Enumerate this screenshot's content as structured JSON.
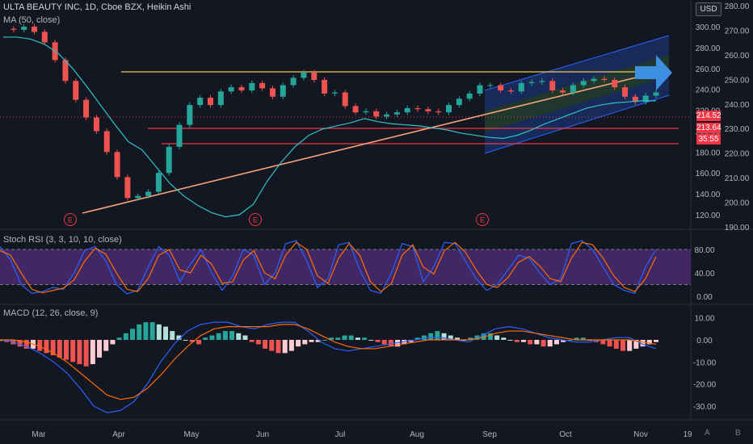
{
  "header": {
    "title": "ULTA BEAUTY INC, 1D, Cboe BZX, Heikin Ashi",
    "ma_label": "MA (50, close)",
    "currency": "USD"
  },
  "stoch_label": "Stoch RSI (3, 3, 10, 10, close)",
  "macd_label": "MACD (12, 26, close, 9)",
  "price_badges": {
    "last": "214.52",
    "level": "213.64",
    "timer": "35:55"
  },
  "bottom": {
    "auto": "A",
    "b": "B"
  },
  "earnings_marker": "E",
  "colors": {
    "background": "#131722",
    "up": "#26a69a",
    "down": "#ef5350",
    "ma": "#2dc2c6",
    "trend": "#f7a47c",
    "resistance": "#f2c94c",
    "support": "#f23645",
    "rsi_band": "#4a2a6e",
    "k_line": "#2962ff",
    "d_line": "#ff6d00",
    "arrow": "#3d8fe0"
  },
  "chart_data": [
    {
      "type": "candlestick",
      "title": "ULTA BEAUTY INC, 1D, Cboe BZX, Heikin Ashi",
      "y_axis_left_ticks": [
        300,
        280,
        260,
        240,
        220,
        200,
        180,
        160,
        140,
        120
      ],
      "y_axis_right_ticks": [
        280,
        270,
        260,
        250,
        240,
        230,
        220,
        210,
        200,
        190
      ],
      "x_ticks": [
        "Mar",
        "Apr",
        "May",
        "Jun",
        "Jul",
        "Aug",
        "Sep",
        "Oct",
        "Nov",
        "19"
      ],
      "close_path": [
        298,
        297,
        300,
        295,
        285,
        268,
        248,
        230,
        213,
        200,
        180,
        156,
        136,
        138,
        142,
        160,
        185,
        206,
        225,
        232,
        225,
        238,
        242,
        239,
        246,
        241,
        233,
        244,
        251,
        256,
        249,
        236,
        237,
        224,
        218,
        219,
        214,
        216,
        218,
        222,
        221,
        219,
        218,
        225,
        231,
        236,
        244,
        244,
        239,
        238,
        246,
        247,
        248,
        239,
        237,
        244,
        248,
        250,
        249,
        242,
        233,
        228,
        234,
        237
      ],
      "ma50": [
        290,
        290,
        288,
        283,
        274,
        260,
        243,
        225,
        207,
        190,
        182,
        166,
        150,
        138,
        129,
        122,
        118,
        120,
        130,
        152,
        170,
        185,
        196,
        202,
        205,
        208,
        212,
        209,
        207,
        206,
        205,
        203,
        201,
        198,
        196,
        194,
        193,
        196,
        201,
        207,
        212,
        217,
        222,
        225,
        227,
        228,
        229,
        229
      ],
      "annotations": [
        "E",
        "E",
        "E"
      ]
    },
    {
      "type": "line",
      "title": "Stoch RSI (3, 3, 10, 10, close)",
      "y_ticks": [
        80.0,
        40.0,
        0.0
      ],
      "band": [
        20,
        80
      ],
      "k": [
        85,
        62,
        20,
        5,
        8,
        15,
        12,
        40,
        78,
        85,
        60,
        20,
        4,
        10,
        50,
        85,
        70,
        25,
        55,
        80,
        40,
        10,
        35,
        80,
        70,
        20,
        40,
        90,
        95,
        60,
        15,
        30,
        88,
        92,
        45,
        10,
        5,
        40,
        90,
        85,
        25,
        50,
        92,
        90,
        60,
        30,
        10,
        20,
        45,
        70,
        65,
        40,
        20,
        30,
        90,
        95,
        80,
        50,
        20,
        10,
        5,
        50,
        80
      ],
      "d": [
        78,
        70,
        40,
        12,
        6,
        10,
        14,
        28,
        60,
        82,
        72,
        40,
        12,
        8,
        30,
        70,
        80,
        45,
        40,
        70,
        55,
        22,
        25,
        62,
        78,
        40,
        30,
        70,
        92,
        80,
        35,
        22,
        65,
        90,
        70,
        25,
        8,
        22,
        70,
        88,
        50,
        38,
        78,
        92,
        75,
        45,
        20,
        15,
        32,
        58,
        68,
        52,
        30,
        25,
        65,
        92,
        88,
        65,
        35,
        15,
        8,
        30,
        68
      ]
    },
    {
      "type": "bar",
      "title": "MACD (12, 26, close, 9)",
      "y_ticks": [
        10.0,
        0.0,
        -10.0,
        -20.0,
        -30.0
      ],
      "histogram": [
        -0.5,
        -1,
        -2,
        -3,
        -4,
        -4,
        -5,
        -6,
        -7,
        -8,
        -9,
        -10,
        -11,
        -12,
        -11,
        -8,
        -5,
        -2,
        1,
        3,
        5,
        7,
        8,
        8,
        7,
        6,
        4,
        2,
        0,
        -1,
        -2,
        1,
        2,
        3,
        4,
        4,
        3,
        2,
        -1,
        -2,
        -4,
        -5,
        -6,
        -6,
        -5,
        -3,
        -2,
        -1,
        -1,
        0,
        1,
        1,
        2,
        2,
        1,
        1,
        0,
        -1,
        -2,
        -3,
        -3,
        -2,
        -1,
        1,
        2,
        3,
        4,
        3,
        2,
        1,
        0,
        1,
        2,
        3,
        3,
        2,
        1,
        0,
        -1,
        -1,
        -2,
        -2,
        -3,
        -3,
        -2,
        -1,
        0,
        1,
        1,
        0,
        -1,
        -2,
        -3,
        -4,
        -5,
        -5,
        -4,
        -3,
        -2,
        -1
      ],
      "macd": [
        0,
        -1,
        -3,
        -6,
        -10,
        -15,
        -22,
        -30,
        -33,
        -32,
        -28,
        -20,
        -10,
        -2,
        4,
        7,
        8,
        8,
        6,
        5,
        7,
        8,
        8,
        4,
        -1,
        -4,
        -5,
        -4,
        -3,
        -2,
        -1,
        0,
        1,
        1,
        0,
        -1,
        2,
        5,
        6,
        5,
        3,
        1,
        0,
        -1,
        -1,
        0,
        1,
        1,
        -2,
        -4
      ],
      "signal": [
        0,
        0,
        -1,
        -3,
        -6,
        -10,
        -15,
        -20,
        -25,
        -27,
        -26,
        -22,
        -16,
        -9,
        -3,
        2,
        5,
        6,
        6,
        6,
        6,
        7,
        7,
        5,
        2,
        -1,
        -3,
        -4,
        -4,
        -3,
        -2,
        -1,
        0,
        0,
        0,
        0,
        1,
        3,
        4,
        4,
        3,
        2,
        1,
        0,
        0,
        0,
        0,
        0,
        -1,
        -2
      ]
    }
  ]
}
